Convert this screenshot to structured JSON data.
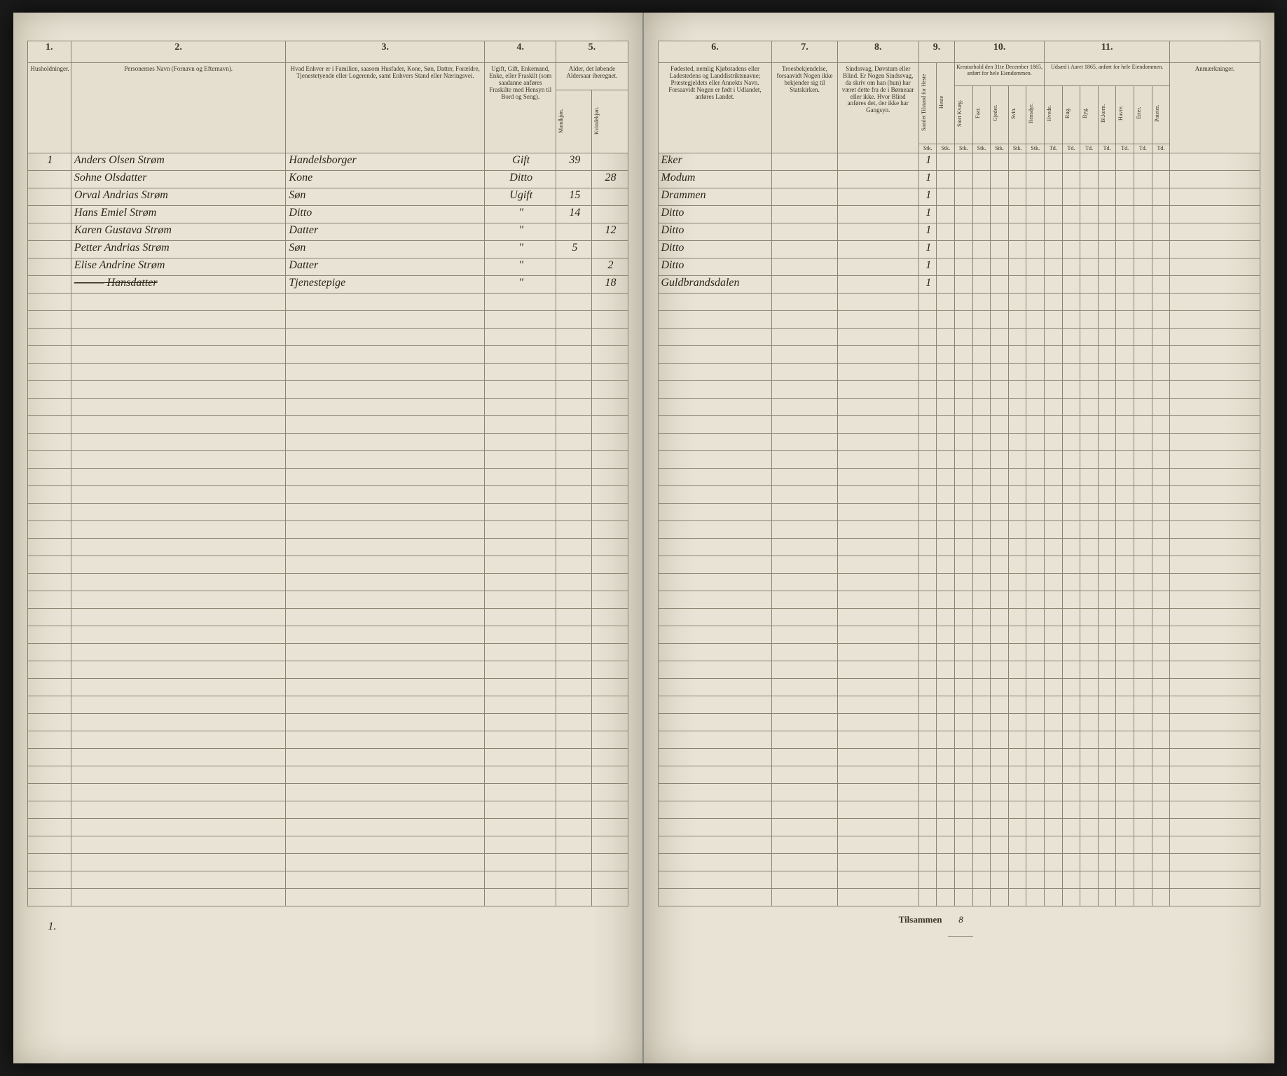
{
  "headers_left": {
    "col1": "1.",
    "col2": "2.",
    "col3": "3.",
    "col4": "4.",
    "col5": "5.",
    "desc1": "Husholdninger.",
    "desc2": "Personernes Navn (Fornavn og Efternavn).",
    "desc3": "Hvad Enhver er i Familien, saasom Husfader, Kone, Søn, Datter, Forældre, Tjenestetyende eller Logerende, samt Enhvers Stand eller Næringsvei.",
    "desc4": "Ugift, Gift, Enkemand, Enke, eller Fraskilt (som saadanne anføres Fraskilte med Hensyn til Bord og Seng).",
    "desc5": "Alder, det løbende Aldersaar iberegnet.",
    "sub5a": "Mandkjøn.",
    "sub5b": "Kvindekjøn."
  },
  "headers_right": {
    "col6": "6.",
    "col7": "7.",
    "col8": "8.",
    "col9": "9.",
    "col10": "10.",
    "col11": "11.",
    "desc6": "Fødested, nemlig Kjøbstadens eller Ladestedens og Landdistriktsnavne; Præstegjeldets eller Annekts Navn. Forsaavidt Nogen er født i Udlandet, anføres Landet.",
    "desc7": "Troesbekjendelse, forsaavidt Nogen ikke bekjender sig til Statskirken.",
    "desc8": "Sindssvag, Døvstum eller Blind. Er Nogen Sindssvag, da skriv om han (hun) har været dette fra de i Børneaar eller ikke. Hvor Blind anføres det, der ikke har Gangsyn.",
    "desc9a": "Samlet Tilstand for Heste",
    "desc9b": "Heste",
    "desc10": "Kreaturhold den 31te December 1865, anført for hele Eiendommen.",
    "desc11": "Udsæd i Aaret 1865, anført for hele Eiendommen.",
    "desc12": "Anmærkninger.",
    "sub10": [
      "Stort Kvæg.",
      "Faar.",
      "Gjeder.",
      "Svin.",
      "Rensdyr."
    ],
    "sub11": [
      "Hvede.",
      "Rug.",
      "Byg.",
      "Bl.korn.",
      "Havre.",
      "Erter.",
      "Poteter."
    ],
    "unit": "Td."
  },
  "rows": [
    {
      "hh": "1",
      "name": "Anders Olsen Strøm",
      "role": "Handelsborger",
      "status": "Gift",
      "age_m": "39",
      "age_f": "",
      "birthplace": "Eker",
      "faith": "",
      "col9": "1"
    },
    {
      "hh": "",
      "name": "Sohne Olsdatter",
      "role": "Kone",
      "status": "Ditto",
      "age_m": "",
      "age_f": "28",
      "birthplace": "Modum",
      "faith": "",
      "col9": "1"
    },
    {
      "hh": "",
      "name": "Orval Andrias Strøm",
      "role": "Søn",
      "status": "Ugift",
      "age_m": "15",
      "age_f": "",
      "birthplace": "Drammen",
      "faith": "",
      "col9": "1"
    },
    {
      "hh": "",
      "name": "Hans Emiel Strøm",
      "role": "Ditto",
      "status": "\"",
      "age_m": "14",
      "age_f": "",
      "birthplace": "Ditto",
      "faith": "",
      "col9": "1"
    },
    {
      "hh": "",
      "name": "Karen Gustava Strøm",
      "role": "Datter",
      "status": "\"",
      "age_m": "",
      "age_f": "12",
      "birthplace": "Ditto",
      "faith": "",
      "col9": "1"
    },
    {
      "hh": "",
      "name": "Petter Andrias Strøm",
      "role": "Søn",
      "status": "\"",
      "age_m": "5",
      "age_f": "",
      "birthplace": "Ditto",
      "faith": "",
      "col9": "1"
    },
    {
      "hh": "",
      "name": "Elise Andrine Strøm",
      "role": "Datter",
      "status": "\"",
      "age_m": "",
      "age_f": "2",
      "birthplace": "Ditto",
      "faith": "",
      "col9": "1"
    },
    {
      "hh": "",
      "name": "——— Hansdatter",
      "role": "Tjenestepige",
      "status": "\"",
      "age_m": "",
      "age_f": "18",
      "birthplace": "Guldbrandsdalen",
      "faith": "",
      "col9": "1",
      "strike": true
    }
  ],
  "empty_rows": 35,
  "footer": {
    "left_num": "1.",
    "label": "Tilsammen",
    "total": "8"
  },
  "colors": {
    "paper": "#e8e3d5",
    "rule": "#8a8370",
    "ink": "#2a2518"
  }
}
